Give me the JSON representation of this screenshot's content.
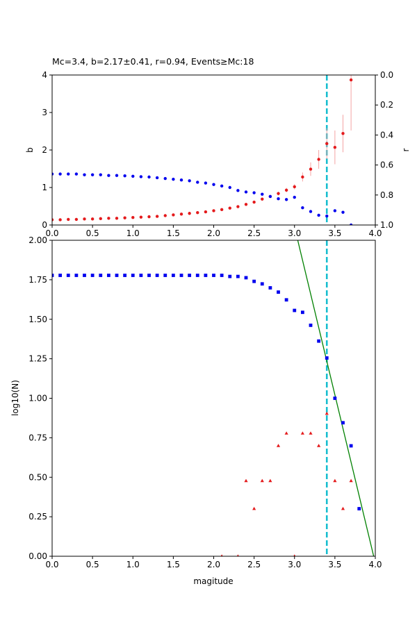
{
  "chart_data": [
    {
      "type": "scatter",
      "title": "Mc=3.4, b=2.17±0.41, r=0.94, Events≥Mc:18",
      "xlabel": "",
      "ylabel": "b",
      "ylabel_right": "r",
      "xlim": [
        0,
        4
      ],
      "ylim": [
        0,
        4
      ],
      "ylim_right": [
        1,
        0
      ],
      "x_ticks": [
        "0.0",
        "0.5",
        "1.0",
        "1.5",
        "2.0",
        "2.5",
        "3.0",
        "3.5",
        "4.0"
      ],
      "y_ticks": [
        "0",
        "1",
        "2",
        "3",
        "4"
      ],
      "y_ticks_right": [
        "0.0",
        "0.2",
        "0.4",
        "0.6",
        "0.8",
        "1.0"
      ],
      "grid": false,
      "vline": {
        "x": 3.4,
        "color": "#17becf",
        "style": "dashed"
      },
      "series": [
        {
          "axis": "left",
          "color": "#e41a1c",
          "errorbar_color": "#f4a3a3",
          "marker": "circle",
          "points": [
            [
              0.0,
              0.14,
              0.01
            ],
            [
              0.1,
              0.14,
              0.01
            ],
            [
              0.2,
              0.15,
              0.01
            ],
            [
              0.3,
              0.15,
              0.01
            ],
            [
              0.4,
              0.16,
              0.01
            ],
            [
              0.5,
              0.16,
              0.01
            ],
            [
              0.6,
              0.17,
              0.01
            ],
            [
              0.7,
              0.18,
              0.01
            ],
            [
              0.8,
              0.18,
              0.01
            ],
            [
              0.9,
              0.19,
              0.01
            ],
            [
              1.0,
              0.2,
              0.01
            ],
            [
              1.1,
              0.21,
              0.01
            ],
            [
              1.2,
              0.22,
              0.01
            ],
            [
              1.3,
              0.23,
              0.01
            ],
            [
              1.4,
              0.25,
              0.01
            ],
            [
              1.5,
              0.27,
              0.01
            ],
            [
              1.6,
              0.29,
              0.01
            ],
            [
              1.7,
              0.31,
              0.01
            ],
            [
              1.8,
              0.33,
              0.01
            ],
            [
              1.9,
              0.35,
              0.01
            ],
            [
              2.0,
              0.38,
              0.02
            ],
            [
              2.1,
              0.41,
              0.02
            ],
            [
              2.2,
              0.45,
              0.02
            ],
            [
              2.3,
              0.49,
              0.02
            ],
            [
              2.4,
              0.55,
              0.03
            ],
            [
              2.5,
              0.61,
              0.03
            ],
            [
              2.6,
              0.69,
              0.04
            ],
            [
              2.7,
              0.76,
              0.04
            ],
            [
              2.8,
              0.84,
              0.05
            ],
            [
              2.9,
              0.93,
              0.06
            ],
            [
              3.0,
              1.02,
              0.07
            ],
            [
              3.1,
              1.28,
              0.12
            ],
            [
              3.2,
              1.49,
              0.18
            ],
            [
              3.3,
              1.75,
              0.25
            ],
            [
              3.4,
              2.17,
              0.41
            ],
            [
              3.5,
              2.07,
              0.45
            ],
            [
              3.6,
              2.44,
              0.5
            ],
            [
              3.7,
              3.87,
              1.35
            ]
          ]
        },
        {
          "axis": "right",
          "color": "#0000ee",
          "marker": "circle",
          "points": [
            [
              0.0,
              0.66
            ],
            [
              0.1,
              0.66
            ],
            [
              0.2,
              0.66
            ],
            [
              0.3,
              0.66
            ],
            [
              0.4,
              0.665
            ],
            [
              0.5,
              0.665
            ],
            [
              0.6,
              0.665
            ],
            [
              0.7,
              0.67
            ],
            [
              0.8,
              0.67
            ],
            [
              0.9,
              0.672
            ],
            [
              1.0,
              0.675
            ],
            [
              1.1,
              0.678
            ],
            [
              1.2,
              0.68
            ],
            [
              1.3,
              0.685
            ],
            [
              1.4,
              0.69
            ],
            [
              1.5,
              0.695
            ],
            [
              1.6,
              0.7
            ],
            [
              1.7,
              0.705
            ],
            [
              1.8,
              0.715
            ],
            [
              1.9,
              0.72
            ],
            [
              2.0,
              0.73
            ],
            [
              2.1,
              0.74
            ],
            [
              2.2,
              0.75
            ],
            [
              2.3,
              0.77
            ],
            [
              2.4,
              0.78
            ],
            [
              2.5,
              0.785
            ],
            [
              2.6,
              0.795
            ],
            [
              2.7,
              0.81
            ],
            [
              2.8,
              0.825
            ],
            [
              2.9,
              0.83
            ],
            [
              3.0,
              0.815
            ],
            [
              3.1,
              0.885
            ],
            [
              3.2,
              0.91
            ],
            [
              3.3,
              0.935
            ],
            [
              3.4,
              0.94
            ],
            [
              3.5,
              0.905
            ],
            [
              3.6,
              0.915
            ],
            [
              3.7,
              1.0
            ]
          ]
        }
      ]
    },
    {
      "type": "scatter",
      "title": "",
      "xlabel": "magitude",
      "ylabel": "log10(N)",
      "xlim": [
        0,
        4
      ],
      "ylim": [
        0,
        2
      ],
      "x_ticks": [
        "0.0",
        "0.5",
        "1.0",
        "1.5",
        "2.0",
        "2.5",
        "3.0",
        "3.5",
        "4.0"
      ],
      "y_ticks": [
        "0.00",
        "0.25",
        "0.50",
        "0.75",
        "1.00",
        "1.25",
        "1.50",
        "1.75",
        "2.00"
      ],
      "grid": false,
      "vline": {
        "x": 3.4,
        "color": "#17becf",
        "style": "dashed"
      },
      "fit_line": {
        "color": "#008000",
        "points": [
          [
            3.04,
            2.0
          ],
          [
            3.98,
            0.0
          ]
        ]
      },
      "series": [
        {
          "color": "#0000ee",
          "marker": "square",
          "points": [
            [
              0.0,
              1.778
            ],
            [
              0.1,
              1.778
            ],
            [
              0.2,
              1.778
            ],
            [
              0.3,
              1.778
            ],
            [
              0.4,
              1.778
            ],
            [
              0.5,
              1.778
            ],
            [
              0.6,
              1.778
            ],
            [
              0.7,
              1.778
            ],
            [
              0.8,
              1.778
            ],
            [
              0.9,
              1.778
            ],
            [
              1.0,
              1.778
            ],
            [
              1.1,
              1.778
            ],
            [
              1.2,
              1.778
            ],
            [
              1.3,
              1.778
            ],
            [
              1.4,
              1.778
            ],
            [
              1.5,
              1.778
            ],
            [
              1.6,
              1.778
            ],
            [
              1.7,
              1.778
            ],
            [
              1.8,
              1.778
            ],
            [
              1.9,
              1.778
            ],
            [
              2.0,
              1.778
            ],
            [
              2.1,
              1.778
            ],
            [
              2.2,
              1.771
            ],
            [
              2.3,
              1.771
            ],
            [
              2.4,
              1.763
            ],
            [
              2.5,
              1.74
            ],
            [
              2.6,
              1.724
            ],
            [
              2.7,
              1.699
            ],
            [
              2.8,
              1.672
            ],
            [
              2.9,
              1.623
            ],
            [
              3.0,
              1.556
            ],
            [
              3.1,
              1.544
            ],
            [
              3.2,
              1.462
            ],
            [
              3.3,
              1.362
            ],
            [
              3.4,
              1.255
            ],
            [
              3.5,
              1.0
            ],
            [
              3.6,
              0.845
            ],
            [
              3.7,
              0.699
            ],
            [
              3.8,
              0.301
            ]
          ]
        },
        {
          "color": "#e41a1c",
          "marker": "triangle",
          "points": [
            [
              2.1,
              0.0
            ],
            [
              2.3,
              0.0
            ],
            [
              2.4,
              0.477
            ],
            [
              2.5,
              0.301
            ],
            [
              2.6,
              0.477
            ],
            [
              2.7,
              0.477
            ],
            [
              2.8,
              0.699
            ],
            [
              2.9,
              0.778
            ],
            [
              3.0,
              0.0
            ],
            [
              3.1,
              0.778
            ],
            [
              3.2,
              0.778
            ],
            [
              3.3,
              0.699
            ],
            [
              3.4,
              0.903
            ],
            [
              3.5,
              0.477
            ],
            [
              3.6,
              0.301
            ],
            [
              3.7,
              0.477
            ]
          ]
        }
      ]
    }
  ]
}
